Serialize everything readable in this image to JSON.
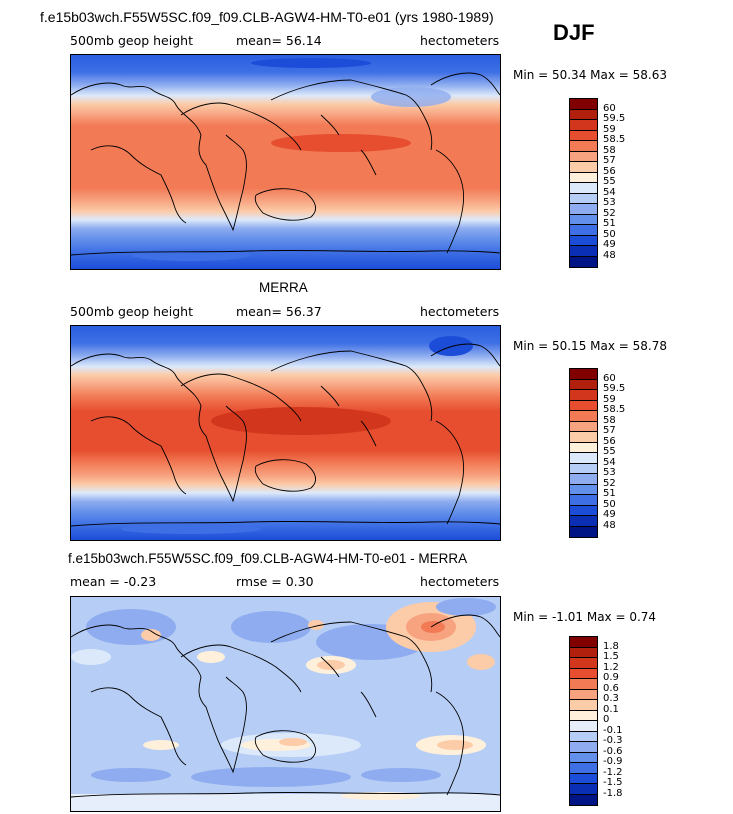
{
  "title_top": "f.e15b03wch.F55W5SC.f09_f09.CLB-AGW4-HM-T0-e01 (yrs 1980-1989)",
  "season": "DJF",
  "panels": [
    {
      "id": "model",
      "left_label": "500mb geop height",
      "center_label": "mean=  56.14",
      "right_label": "hectometers",
      "stats": "Min =  50.34  Max =  58.63",
      "colorbar": {
        "labels": [
          "60",
          "59.5",
          "59",
          "58.5",
          "58",
          "57",
          "56",
          "55",
          "54",
          "53",
          "52",
          "51",
          "50",
          "49",
          "48"
        ],
        "colors": [
          "#800000",
          "#b0200d",
          "#d2371d",
          "#e64e2f",
          "#f27a55",
          "#f7a380",
          "#fccba8",
          "#fff0dc",
          "#dce9fa",
          "#b6cdf5",
          "#8eacef",
          "#6390ea",
          "#3e6fe5",
          "#1c4dd8",
          "#0a2fb5",
          "#001585"
        ]
      }
    },
    {
      "id": "merra",
      "title": "MERRA",
      "left_label": "500mb geop height",
      "center_label": "mean=  56.37",
      "right_label": "hectometers",
      "stats": "Min =  50.15  Max =  58.78",
      "colorbar": {
        "labels": [
          "60",
          "59.5",
          "59",
          "58.5",
          "58",
          "57",
          "56",
          "55",
          "54",
          "53",
          "52",
          "51",
          "50",
          "49",
          "48"
        ],
        "colors": [
          "#800000",
          "#b0200d",
          "#d2371d",
          "#e64e2f",
          "#f27a55",
          "#f7a380",
          "#fccba8",
          "#fff0dc",
          "#dce9fa",
          "#b6cdf5",
          "#8eacef",
          "#6390ea",
          "#3e6fe5",
          "#1c4dd8",
          "#0a2fb5",
          "#001585"
        ]
      }
    },
    {
      "id": "diff",
      "title": "f.e15b03wch.F55W5SC.f09_f09.CLB-AGW4-HM-T0-e01 - MERRA",
      "left_label": "mean =  -0.23",
      "center_label": "rmse =   0.30",
      "right_label": "hectometers",
      "stats": "Min =  -1.01  Max =   0.74",
      "colorbar": {
        "labels": [
          "1.8",
          "1.5",
          "1.2",
          "0.9",
          "0.6",
          "0.3",
          "0.1",
          "0",
          "-0.1",
          "-0.3",
          "-0.6",
          "-0.9",
          "-1.2",
          "-1.5",
          "-1.8"
        ],
        "colors": [
          "#800000",
          "#b0200d",
          "#d2371d",
          "#e64e2f",
          "#f27a55",
          "#f7a380",
          "#fccba8",
          "#fff0dc",
          "#e6eefb",
          "#b6cdf5",
          "#8eacef",
          "#6390ea",
          "#3e6fe5",
          "#1c4dd8",
          "#0a2fb5",
          "#001585"
        ]
      }
    }
  ]
}
